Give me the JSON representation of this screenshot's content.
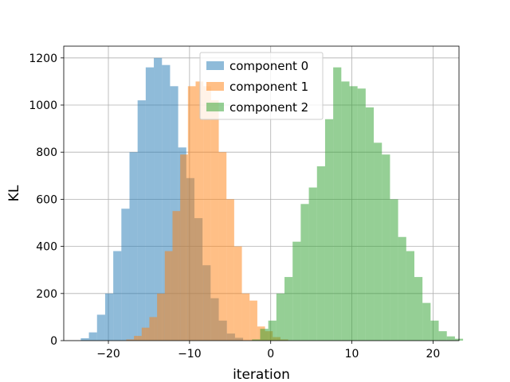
{
  "chart_data": {
    "type": "histogram",
    "xlabel": "iteration",
    "ylabel": "KL",
    "xlim": [
      -25.5,
      23.2
    ],
    "ylim": [
      0,
      1250
    ],
    "x_ticks": [
      -20,
      -10,
      0,
      10,
      20
    ],
    "y_ticks": [
      0,
      200,
      400,
      600,
      800,
      1000,
      1200
    ],
    "x_tick_labels": [
      "−20",
      "−10",
      "0",
      "10",
      "20"
    ],
    "y_tick_labels": [
      "0",
      "200",
      "400",
      "600",
      "800",
      "1000",
      "1200"
    ],
    "grid": true,
    "legend_position": "top-center",
    "series": [
      {
        "name": "component 0",
        "color": "#1f77b4",
        "alpha": 0.5,
        "bin_start": -23.4,
        "bin_width": 1.0,
        "counts": [
          10,
          35,
          110,
          200,
          380,
          560,
          800,
          1020,
          1160,
          1200,
          1170,
          1080,
          820,
          690,
          520,
          320,
          180,
          85,
          30,
          12
        ]
      },
      {
        "name": "component 1",
        "color": "#ff7f0e",
        "alpha": 0.5,
        "bin_start": -17.8,
        "bin_width": 0.95,
        "counts": [
          5,
          20,
          55,
          100,
          200,
          380,
          550,
          790,
          1080,
          1100,
          1080,
          1020,
          800,
          600,
          400,
          200,
          170,
          60,
          40,
          15,
          5
        ]
      },
      {
        "name": "component 2",
        "color": "#2ca02c",
        "alpha": 0.5,
        "bin_start": -2.3,
        "bin_width": 1.0,
        "counts": [
          5,
          50,
          85,
          200,
          270,
          420,
          580,
          650,
          740,
          940,
          1160,
          1100,
          1080,
          1070,
          990,
          840,
          790,
          600,
          440,
          380,
          270,
          160,
          85,
          40,
          18,
          8
        ]
      }
    ]
  }
}
